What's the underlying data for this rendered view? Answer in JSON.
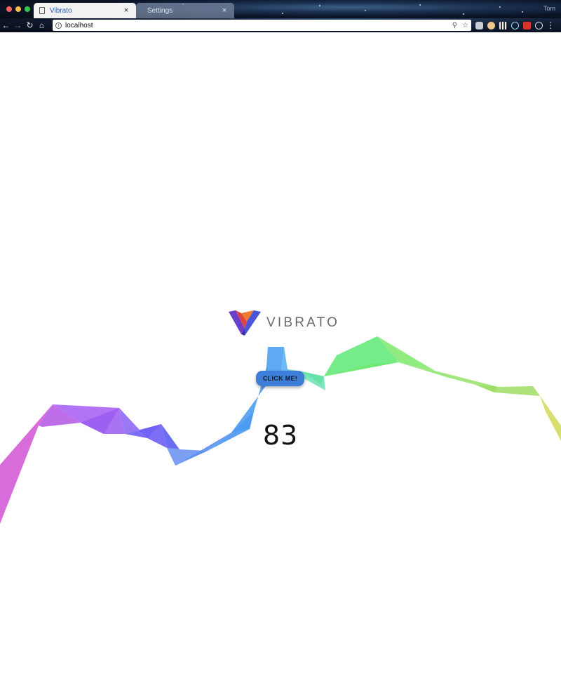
{
  "browser": {
    "tabs": [
      {
        "title": "Vibrato",
        "active": true
      },
      {
        "title": "Settings",
        "active": false
      }
    ],
    "close_glyph": "×",
    "profile_label": "Tom",
    "url": "localhost",
    "nav": {
      "back": "←",
      "forward": "→",
      "reload": "↻",
      "home": "⌂"
    },
    "omnibox_icons": {
      "info": "i",
      "zoom": "⚲",
      "bookmark": "☆"
    },
    "menu_glyph": "⋮",
    "extensions": [
      "pocket-icon",
      "cookie-icon",
      "qr-code-icon",
      "react-devtools-icon",
      "opera-badge-icon",
      "redux-devtools-icon"
    ]
  },
  "page": {
    "logo_text": "VIBRATO",
    "button_label": "CLICK ME!",
    "counter": "83"
  },
  "theme": {
    "accent": "#3d7fd8",
    "wave_colors": [
      "#d65fd8",
      "#a45cf2",
      "#6e5ff5",
      "#5b8ff0",
      "#4ca0f0",
      "#62e87a",
      "#7de86a",
      "#9fdd66",
      "#d3dc62"
    ]
  }
}
